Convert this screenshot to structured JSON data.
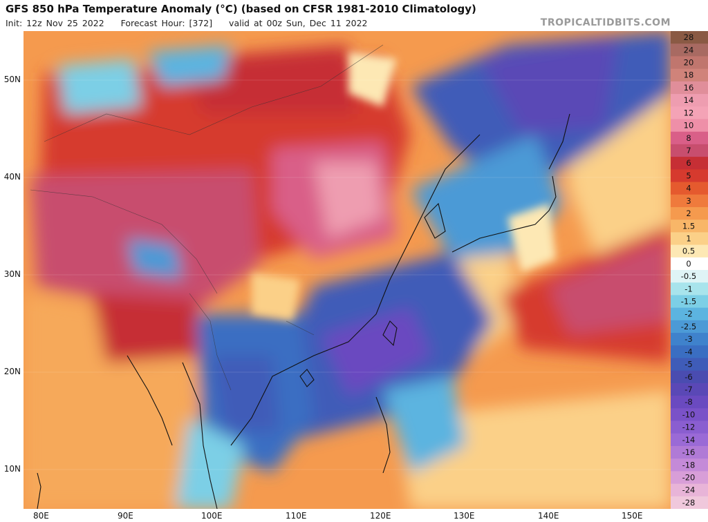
{
  "header": {
    "title": "GFS 850 hPa Temperature Anomaly (°C) (based on CFSR 1981-2010 Climatology)",
    "init": "Init: 12z Nov 25 2022",
    "forecast_hour": "Forecast Hour: [372]",
    "valid": "valid at 00z Sun, Dec 11 2022",
    "brand": "TROPICALTIDBITS.COM"
  },
  "map": {
    "lat_labels": [
      {
        "value": 50,
        "label": "50N"
      },
      {
        "value": 40,
        "label": "40N"
      },
      {
        "value": 30,
        "label": "30N"
      },
      {
        "value": 20,
        "label": "20N"
      },
      {
        "value": 10,
        "label": "10N"
      }
    ],
    "lon_labels": [
      {
        "value": 80,
        "label": "80E"
      },
      {
        "value": 90,
        "label": "90E"
      },
      {
        "value": 100,
        "label": "100E"
      },
      {
        "value": 110,
        "label": "110E"
      },
      {
        "value": 120,
        "label": "120E"
      },
      {
        "value": 130,
        "label": "130E"
      },
      {
        "value": 140,
        "label": "140E"
      },
      {
        "value": 150,
        "label": "150E"
      }
    ],
    "lat_range": [
      6,
      55
    ],
    "lon_range": [
      78.3,
      155.3
    ]
  },
  "colorbar": {
    "levels": [
      {
        "label": "28",
        "color": "#8a5a44"
      },
      {
        "label": "24",
        "color": "#a86a62"
      },
      {
        "label": "20",
        "color": "#c0766e"
      },
      {
        "label": "18",
        "color": "#d0837a"
      },
      {
        "label": "16",
        "color": "#e08e9a"
      },
      {
        "label": "14",
        "color": "#ee9db0"
      },
      {
        "label": "12",
        "color": "#f4a3b6"
      },
      {
        "label": "10",
        "color": "#ee8fa8"
      },
      {
        "label": "8",
        "color": "#d95f88"
      },
      {
        "label": "7",
        "color": "#c84e6e"
      },
      {
        "label": "6",
        "color": "#c62f35"
      },
      {
        "label": "5",
        "color": "#d63a2e"
      },
      {
        "label": "4",
        "color": "#e55a2e"
      },
      {
        "label": "3",
        "color": "#ef7a3c"
      },
      {
        "label": "2",
        "color": "#f59a4e"
      },
      {
        "label": "1.5",
        "color": "#f8b668"
      },
      {
        "label": "1",
        "color": "#fbd088"
      },
      {
        "label": "0.5",
        "color": "#fde8b4"
      },
      {
        "label": "0",
        "color": "#ffffff"
      },
      {
        "label": "-0.5",
        "color": "#dff4f6"
      },
      {
        "label": "-1",
        "color": "#a8e4ec"
      },
      {
        "label": "-1.5",
        "color": "#7ccfe6"
      },
      {
        "label": "-2",
        "color": "#5cb4e0"
      },
      {
        "label": "-2.5",
        "color": "#4c9ad6"
      },
      {
        "label": "-3",
        "color": "#3f82cc"
      },
      {
        "label": "-4",
        "color": "#3a6ec2"
      },
      {
        "label": "-5",
        "color": "#3f5cb8"
      },
      {
        "label": "-6",
        "color": "#4a4cb0"
      },
      {
        "label": "-7",
        "color": "#5a48b6"
      },
      {
        "label": "-8",
        "color": "#6a4ac0"
      },
      {
        "label": "-10",
        "color": "#7a52c8"
      },
      {
        "label": "-12",
        "color": "#8a5ed0"
      },
      {
        "label": "-14",
        "color": "#9a6ad6"
      },
      {
        "label": "-16",
        "color": "#b07ad6"
      },
      {
        "label": "-18",
        "color": "#c48ad8"
      },
      {
        "label": "-20",
        "color": "#d89ed8"
      },
      {
        "label": "-24",
        "color": "#e8b4d8"
      },
      {
        "label": "-28",
        "color": "#f0c8dc"
      }
    ]
  }
}
